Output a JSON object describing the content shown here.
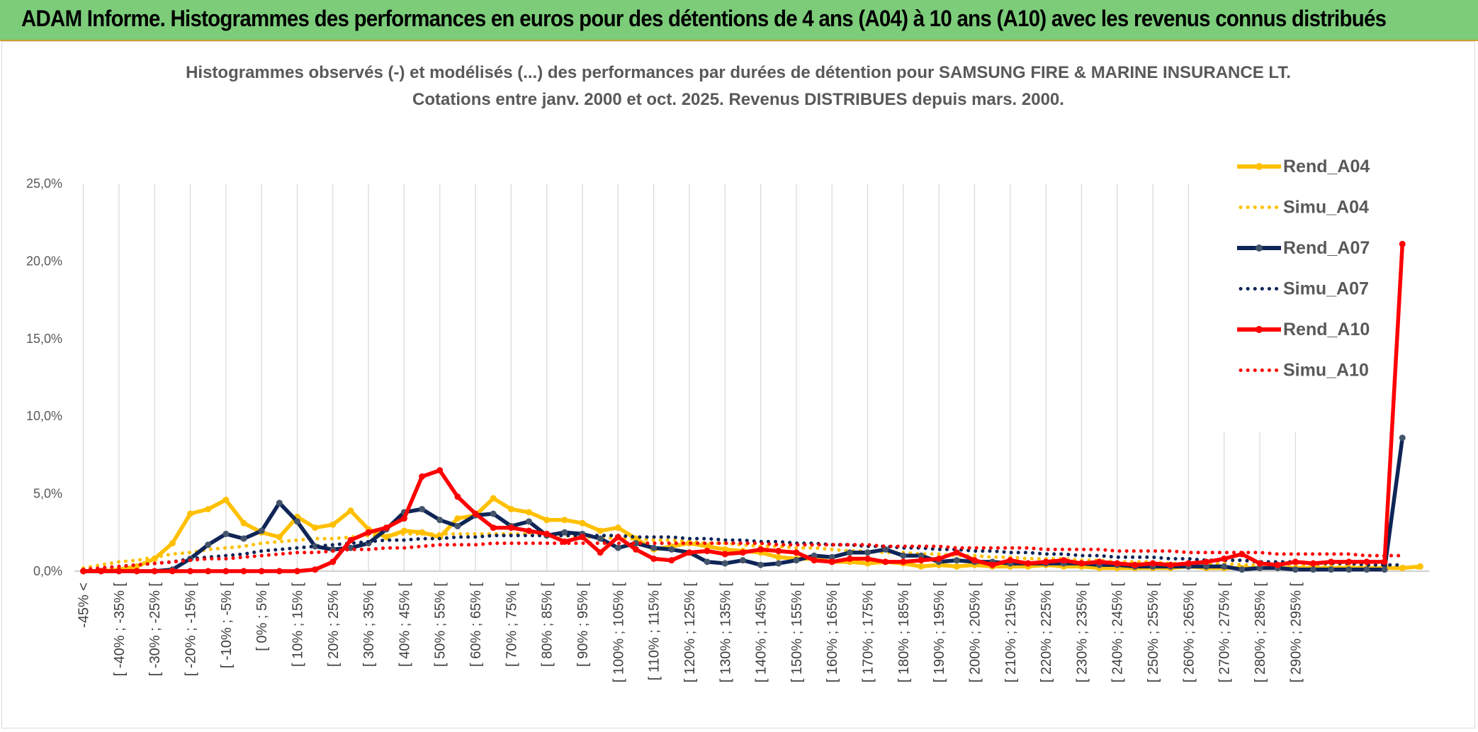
{
  "banner": {
    "title": "ADAM Informe. Histogrammes des performances en euros pour des détentions de 4 ans (A04) à 10 ans (A10) avec les revenus connus distribués"
  },
  "chart_data": {
    "type": "line",
    "title": "Histogrammes observés (-) et modélisés (...) des performances par durées de détention pour SAMSUNG FIRE & MARINE INSURANCE LT.",
    "subtitle": "Cotations entre janv. 2000 et oct. 2025. Revenus DISTRIBUES depuis mars. 2000.",
    "xlabel": "",
    "ylabel": "",
    "ylim": [
      0,
      25
    ],
    "y_ticks": [
      "0,0%",
      "5,0%",
      "10,0%",
      "15,0%",
      "20,0%",
      "25,0%"
    ],
    "grid": "vertical",
    "legend_position": "right",
    "x_tick_labels": [
      "-45% <",
      "[ -40% ; -35% [",
      "[ -30% ; -25% [",
      "[ -20% ; -15% [",
      "[ -10% ; -5% [",
      "[ 0% ; 5% [",
      "[ 10% ; 15% [",
      "[ 20% ; 25% [",
      "[ 30% ; 35% [",
      "[ 40% ; 45% [",
      "[ 50% ; 55% [",
      "[ 60% ; 65% [",
      "[ 70% ; 75% [",
      "[ 80% ; 85% [",
      "[ 90% ; 95% [",
      "[ 100% ; 105% [",
      "[ 110% ; 115% [",
      "[ 120% ; 125% [",
      "[ 130% ; 135% [",
      "[ 140% ; 145% [",
      "[ 150% ; 155% [",
      "[ 160% ; 165% [",
      "[ 170% ; 175% [",
      "[ 180% ; 185% [",
      "[ 190% ; 195% [",
      "[ 200% ; 205% [",
      "[ 210% ; 215% [",
      "[ 220% ; 225% [",
      "[ 230% ; 235% [",
      "[ 240% ; 245% [",
      "[ 250% ; 255% [",
      "[ 260% ; 265% [",
      "[ 270% ; 275% [",
      "[ 280% ; 285% [",
      "[ 290% ; 295% ["
    ],
    "series": [
      {
        "name": "Rend_A04",
        "style": "solid",
        "color": "#ffc000",
        "values": [
          0.0,
          0.0,
          0.1,
          0.3,
          0.8,
          1.8,
          3.7,
          4.0,
          4.6,
          3.1,
          2.5,
          2.2,
          3.5,
          2.8,
          3.0,
          3.9,
          2.7,
          2.2,
          2.6,
          2.5,
          2.2,
          3.4,
          3.6,
          4.7,
          4.0,
          3.8,
          3.3,
          3.3,
          3.1,
          2.6,
          2.8,
          2.1,
          1.4,
          1.6,
          1.8,
          1.6,
          1.4,
          1.3,
          1.2,
          0.9,
          0.8,
          0.8,
          0.6,
          0.6,
          0.5,
          0.6,
          0.5,
          0.3,
          0.4,
          0.3,
          0.4,
          0.3,
          0.3,
          0.3,
          0.4,
          0.3,
          0.3,
          0.2,
          0.2,
          0.2,
          0.2,
          0.2,
          0.3,
          0.2,
          0.2,
          0.2,
          0.2,
          0.2,
          0.2,
          0.2,
          0.2,
          0.2,
          0.2,
          0.2,
          0.2,
          0.3
        ]
      },
      {
        "name": "Simu_A04",
        "style": "dotted",
        "color": "#ffc000",
        "values": [
          0.2,
          0.4,
          0.6,
          0.7,
          0.9,
          1.1,
          1.2,
          1.4,
          1.5,
          1.6,
          1.8,
          1.9,
          2.0,
          2.1,
          2.1,
          2.2,
          2.3,
          2.3,
          2.4,
          2.4,
          2.4,
          2.4,
          2.4,
          2.4,
          2.4,
          2.4,
          2.3,
          2.3,
          2.2,
          2.2,
          2.1,
          2.1,
          2.0,
          2.0,
          1.9,
          1.8,
          1.8,
          1.7,
          1.6,
          1.6,
          1.5,
          1.5,
          1.4,
          1.3,
          1.3,
          1.2,
          1.2,
          1.1,
          1.1,
          1.0,
          1.0,
          0.9,
          0.9,
          0.8,
          0.8,
          0.8,
          0.7,
          0.7,
          0.6,
          0.6,
          0.6,
          0.5,
          0.5,
          0.5,
          0.5,
          0.4,
          0.4,
          0.4,
          0.4,
          0.3,
          0.3,
          0.3,
          0.3,
          0.3,
          0.3,
          0.2
        ]
      },
      {
        "name": "Rend_A07",
        "style": "solid",
        "color": "#0f2557",
        "values": [
          0.0,
          0.0,
          0.0,
          0.0,
          0.0,
          0.1,
          0.8,
          1.7,
          2.4,
          2.1,
          2.6,
          4.4,
          3.2,
          1.6,
          1.4,
          1.5,
          1.8,
          2.7,
          3.8,
          4.0,
          3.3,
          2.9,
          3.6,
          3.7,
          2.9,
          3.2,
          2.3,
          2.5,
          2.4,
          2.1,
          1.5,
          1.8,
          1.5,
          1.4,
          1.2,
          0.6,
          0.5,
          0.7,
          0.4,
          0.5,
          0.7,
          1.0,
          0.9,
          1.2,
          1.2,
          1.4,
          1.0,
          1.0,
          0.6,
          0.7,
          0.6,
          0.6,
          0.5,
          0.5,
          0.5,
          0.5,
          0.5,
          0.4,
          0.4,
          0.3,
          0.3,
          0.3,
          0.3,
          0.3,
          0.3,
          0.1,
          0.2,
          0.2,
          0.1,
          0.1,
          0.1,
          0.1,
          0.1,
          0.1,
          8.6
        ]
      },
      {
        "name": "Simu_A07",
        "style": "dotted",
        "color": "#0f2557",
        "values": [
          0.1,
          0.2,
          0.3,
          0.4,
          0.5,
          0.6,
          0.8,
          0.9,
          1.0,
          1.1,
          1.3,
          1.4,
          1.5,
          1.6,
          1.7,
          1.8,
          1.9,
          2.0,
          2.0,
          2.1,
          2.1,
          2.2,
          2.2,
          2.3,
          2.3,
          2.3,
          2.3,
          2.3,
          2.3,
          2.3,
          2.3,
          2.2,
          2.2,
          2.2,
          2.1,
          2.1,
          2.0,
          2.0,
          1.9,
          1.9,
          1.8,
          1.8,
          1.7,
          1.7,
          1.6,
          1.6,
          1.5,
          1.5,
          1.4,
          1.4,
          1.3,
          1.3,
          1.2,
          1.2,
          1.1,
          1.1,
          1.0,
          1.0,
          0.9,
          0.9,
          0.9,
          0.8,
          0.8,
          0.7,
          0.7,
          0.7,
          0.6,
          0.6,
          0.6,
          0.5,
          0.5,
          0.5,
          0.4,
          0.4,
          0.4
        ]
      },
      {
        "name": "Rend_A10",
        "style": "solid",
        "color": "#ff0000",
        "values": [
          0.0,
          0.0,
          0.0,
          0.0,
          0.0,
          0.0,
          0.0,
          0.0,
          0.0,
          0.0,
          0.0,
          0.0,
          0.0,
          0.1,
          0.6,
          2.0,
          2.5,
          2.8,
          3.4,
          6.1,
          6.5,
          4.8,
          3.7,
          2.8,
          2.8,
          2.6,
          2.4,
          1.9,
          2.2,
          1.2,
          2.2,
          1.4,
          0.8,
          0.7,
          1.2,
          1.3,
          1.1,
          1.2,
          1.4,
          1.3,
          1.2,
          0.7,
          0.6,
          0.8,
          0.8,
          0.6,
          0.6,
          0.7,
          0.8,
          1.2,
          0.7,
          0.4,
          0.7,
          0.5,
          0.6,
          0.7,
          0.5,
          0.6,
          0.5,
          0.4,
          0.5,
          0.4,
          0.5,
          0.6,
          0.8,
          1.1,
          0.5,
          0.4,
          0.6,
          0.5,
          0.6,
          0.6,
          0.6,
          0.6,
          21.1
        ]
      },
      {
        "name": "Simu_A10",
        "style": "dotted",
        "color": "#ff0000",
        "values": [
          0.1,
          0.2,
          0.3,
          0.4,
          0.5,
          0.6,
          0.7,
          0.8,
          0.8,
          0.9,
          1.0,
          1.1,
          1.2,
          1.2,
          1.3,
          1.4,
          1.4,
          1.5,
          1.5,
          1.6,
          1.7,
          1.7,
          1.7,
          1.8,
          1.8,
          1.8,
          1.8,
          1.8,
          1.8,
          1.8,
          1.8,
          1.8,
          1.8,
          1.8,
          1.8,
          1.8,
          1.8,
          1.8,
          1.8,
          1.7,
          1.7,
          1.7,
          1.7,
          1.7,
          1.7,
          1.6,
          1.6,
          1.6,
          1.6,
          1.5,
          1.5,
          1.5,
          1.5,
          1.5,
          1.4,
          1.4,
          1.4,
          1.4,
          1.3,
          1.3,
          1.3,
          1.3,
          1.2,
          1.2,
          1.2,
          1.2,
          1.2,
          1.1,
          1.1,
          1.1,
          1.1,
          1.1,
          1.0,
          1.0,
          1.0
        ]
      }
    ]
  }
}
